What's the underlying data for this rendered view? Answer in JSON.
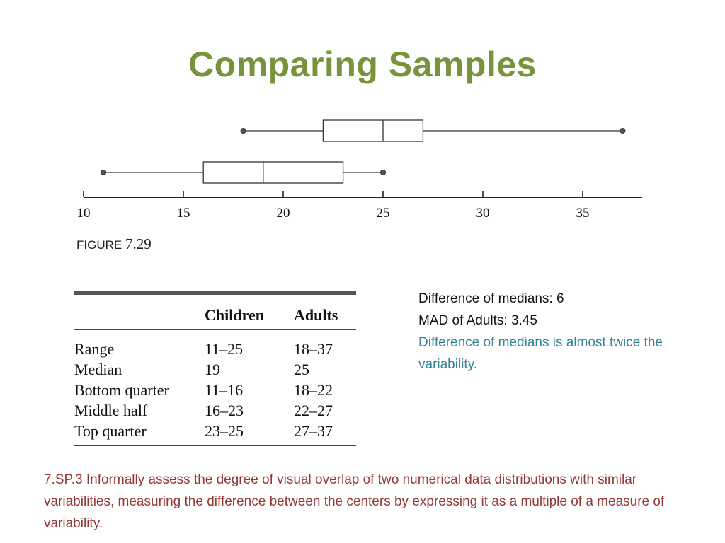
{
  "slide": {
    "title": "Comparing Samples",
    "title_color": "#77933C",
    "figure_label_word": "FIGURE",
    "figure_label_number": "7.29"
  },
  "chart_data": {
    "type": "boxplot",
    "x_ticks": [
      10,
      15,
      20,
      25,
      30,
      35
    ],
    "xlim": [
      10,
      37
    ],
    "series": [
      {
        "min": 18,
        "q1": 22,
        "median": 25,
        "q3": 27,
        "max": 37
      },
      {
        "min": 11,
        "q1": 16,
        "median": 19,
        "q3": 23,
        "max": 25
      }
    ]
  },
  "table": {
    "headers": [
      "",
      "Children",
      "Adults"
    ],
    "rows": [
      [
        "Range",
        "11–25",
        "18–37"
      ],
      [
        "Median",
        "19",
        "25"
      ],
      [
        "Bottom quarter",
        "11–16",
        "18–22"
      ],
      [
        "Middle half",
        "16–23",
        "22–27"
      ],
      [
        "Top quarter",
        "23–25",
        "27–37"
      ]
    ]
  },
  "notes": {
    "line1": "Difference of medians: 6",
    "line2": "MAD of Adults: 3.45",
    "highlight": "Difference of medians is almost twice the variability.",
    "text_color": "#111111",
    "highlight_color": "#31849B"
  },
  "standard": {
    "text": "7.SP.3 Informally assess the degree of visual overlap of two numerical data distributions with similar variabilities, measuring the difference between the centers by expressing it as a multiple of a measure of variability.",
    "color": "#953734"
  }
}
